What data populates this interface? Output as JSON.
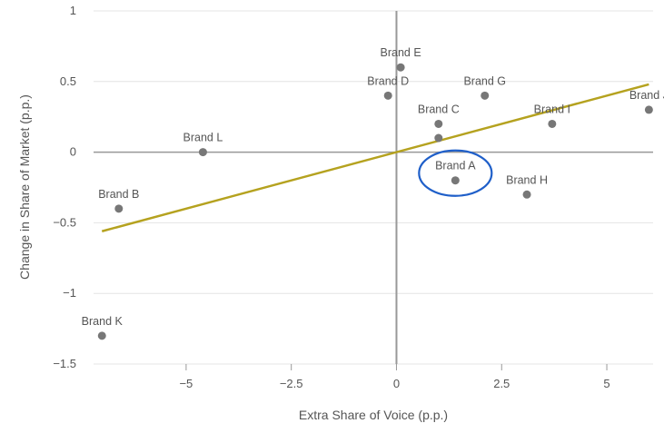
{
  "chart_data": {
    "type": "scatter",
    "title": "",
    "xlabel": "Extra Share of Voice (p.p.)",
    "ylabel": "Change in Share of Market (p.p.)",
    "xlim": [
      -7.2,
      6.1
    ],
    "ylim": [
      -1.5,
      1
    ],
    "x_ticks": [
      -5,
      -2.5,
      0,
      2.5,
      5
    ],
    "x_tick_labels": [
      "−5",
      "−2.5",
      "0",
      "2.5",
      "5"
    ],
    "y_ticks": [
      1,
      0.5,
      0,
      -0.5,
      -1,
      -1.5
    ],
    "y_tick_labels": [
      "1",
      "0.5",
      "0",
      "−0.5",
      "−1",
      "−1.5"
    ],
    "grid": "horizontal",
    "points": [
      {
        "label": "Brand A",
        "x": 1.4,
        "y": -0.2
      },
      {
        "label": "Brand B",
        "x": -6.6,
        "y": -0.4
      },
      {
        "label": "Brand C",
        "x": 1.0,
        "y": 0.2
      },
      {
        "label": "Brand D",
        "x": -0.2,
        "y": 0.4
      },
      {
        "label": "Brand E",
        "x": 0.1,
        "y": 0.6
      },
      {
        "label": "Brand G",
        "x": 2.1,
        "y": 0.4
      },
      {
        "label": "Brand H",
        "x": 3.1,
        "y": -0.3
      },
      {
        "label": "Brand I",
        "x": 3.7,
        "y": 0.2
      },
      {
        "label": "Brand J",
        "x": 6.0,
        "y": 0.3
      },
      {
        "label": "Brand K",
        "x": -7.0,
        "y": -1.3
      },
      {
        "label": "Brand L",
        "x": -4.6,
        "y": 0.0
      },
      {
        "label": "",
        "x": 1.0,
        "y": 0.1
      }
    ],
    "trendline": {
      "x": [
        -7.0,
        6.0
      ],
      "y": [
        -0.56,
        0.48
      ]
    },
    "highlight": {
      "label": "Brand A"
    },
    "colors": {
      "point": "#777777",
      "trendline": "#b5a21f",
      "highlight": "#1f5fc9",
      "grid": "#e4e4e4",
      "zero_line": "#999999"
    }
  }
}
